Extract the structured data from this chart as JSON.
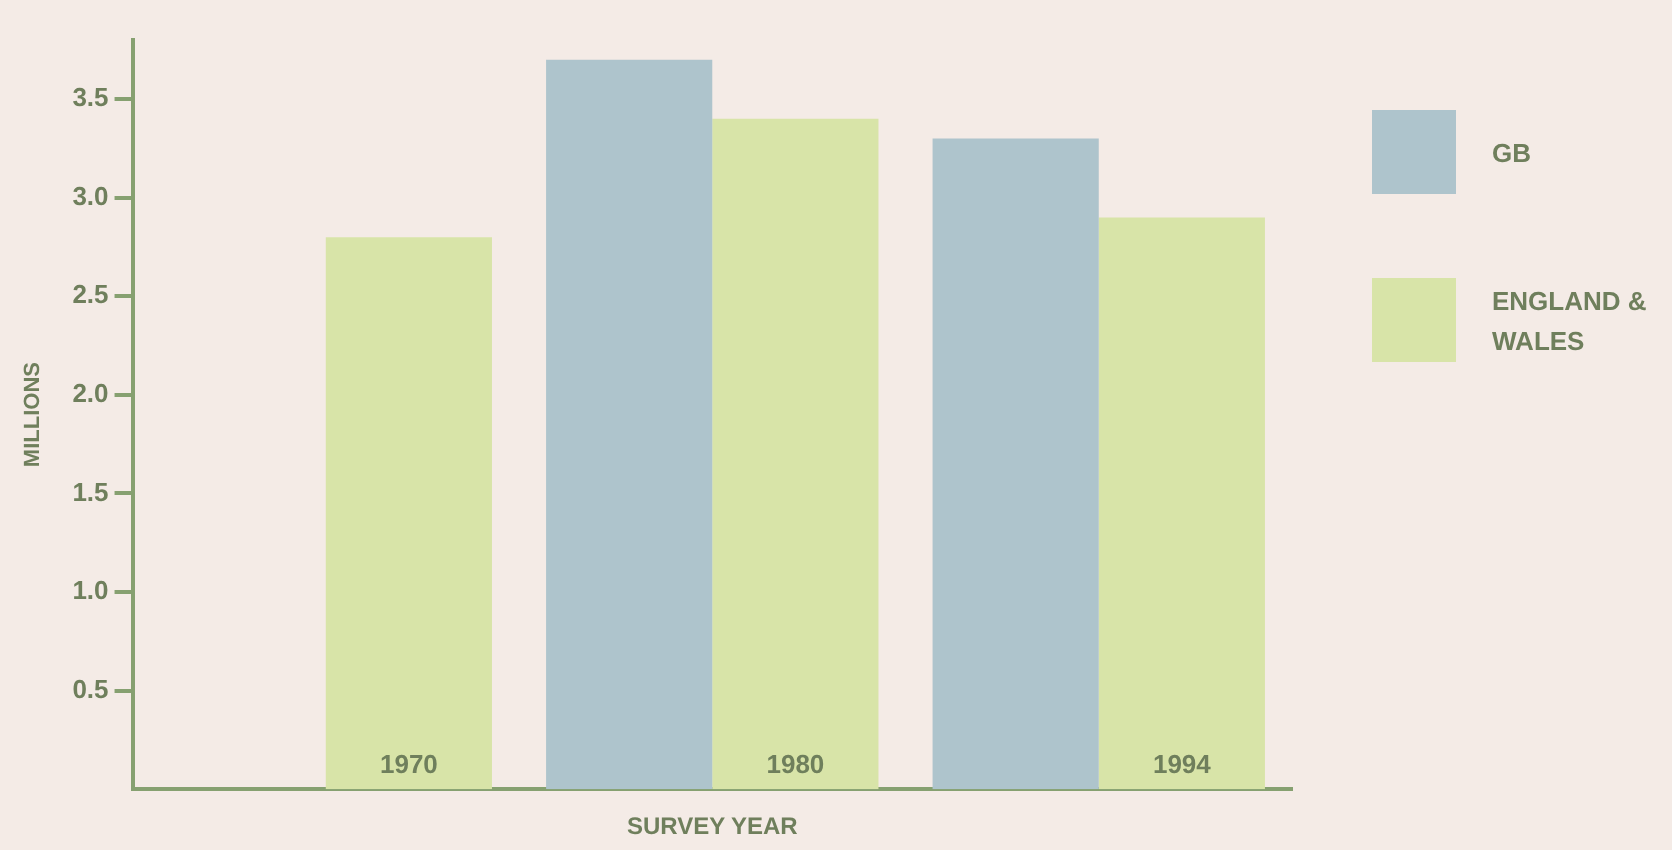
{
  "chart_data": {
    "type": "bar",
    "xlabel": "SURVEY YEAR",
    "ylabel": "MILLIONS",
    "categories": [
      "1970",
      "1980",
      "1994"
    ],
    "series": [
      {
        "name": "GB",
        "color": "#aec4cc",
        "values": [
          null,
          3.7,
          3.3
        ]
      },
      {
        "name": "ENGLAND & WALES",
        "color": "#d8e4a8",
        "values": [
          2.8,
          3.4,
          2.9
        ]
      }
    ],
    "ylim": [
      0,
      3.8
    ],
    "yticks": [
      {
        "value": 0.5,
        "label": "0.5"
      },
      {
        "value": 1.0,
        "label": "1.0"
      },
      {
        "value": 1.5,
        "label": "1.5"
      },
      {
        "value": 2.0,
        "label": "2.0"
      },
      {
        "value": 2.5,
        "label": "2.5"
      },
      {
        "value": 3.0,
        "label": "3.0"
      },
      {
        "value": 3.5,
        "label": "3.5"
      }
    ],
    "grid": false,
    "legend": "top right"
  }
}
